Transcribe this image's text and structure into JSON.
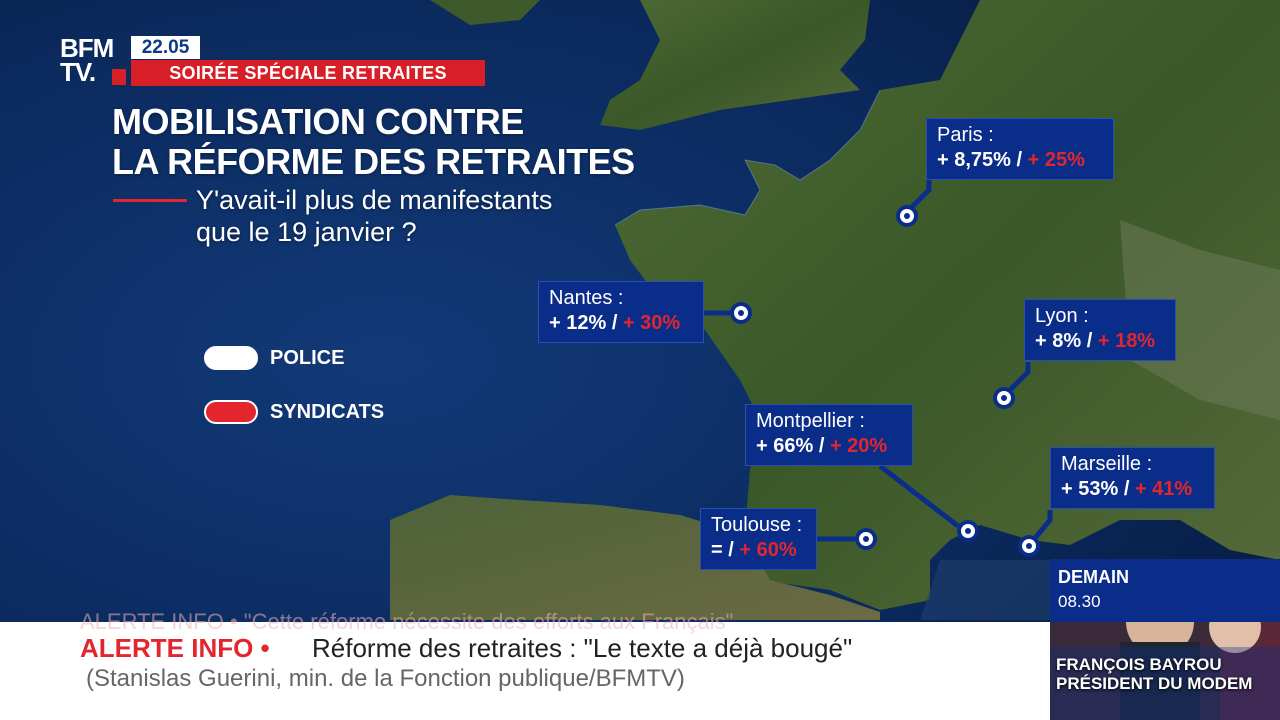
{
  "header": {
    "logo_line1": "BFM",
    "logo_line2": "TV.",
    "time": "22.05",
    "show": "SOIRÉE SPÉCIALE RETRAITES"
  },
  "title": {
    "line1": "MOBILISATION CONTRE",
    "line2": "LA RÉFORME DES RETRAITES"
  },
  "subtitle": {
    "line1": "Y'avait-il plus de manifestants",
    "line2": "que le 19 janvier ?"
  },
  "legend": {
    "police_label": "POLICE",
    "police_color": "#ffffff",
    "unions_label": "SYNDICATS",
    "unions_color": "#e3262d"
  },
  "cities": [
    {
      "name": "Paris :",
      "police": "+ 8,75%",
      "separator": " / ",
      "unions": "+ 25%"
    },
    {
      "name": "Nantes :",
      "police": "+ 12%",
      "separator": " / ",
      "unions": "+ 30%"
    },
    {
      "name": "Lyon :",
      "police": "+ 8%",
      "separator": " / ",
      "unions": "+ 18%"
    },
    {
      "name": "Montpellier :",
      "police": "+ 66%",
      "separator": " / ",
      "unions": "+ 20%"
    },
    {
      "name": "Marseille :",
      "police": "+ 53%",
      "separator": " / ",
      "unions": "+ 41%"
    },
    {
      "name": "Toulouse :",
      "police": "=",
      "separator": " / ",
      "unions": "+ 60%"
    }
  ],
  "ticker": {
    "ghost": "ALERTE INFO • \"Cette réforme nécessite des efforts aux Français\"",
    "label": "ALERTE INFO •",
    "text": "Réforme des retraites : \"Le texte a déjà bougé\"",
    "source": "(Stanislas Guerini, min. de la Fonction publique/BFMTV)"
  },
  "promo": {
    "day": "DEMAIN",
    "time": "08.30",
    "guest_line1": "FRANÇOIS BAYROU",
    "guest_line2": "PRÉSIDENT DU MODEM"
  },
  "colors": {
    "brand_red": "#d81e26",
    "brand_blue": "#0b2d8a",
    "sea": "#0a2350",
    "land": "#3d5a2a"
  }
}
